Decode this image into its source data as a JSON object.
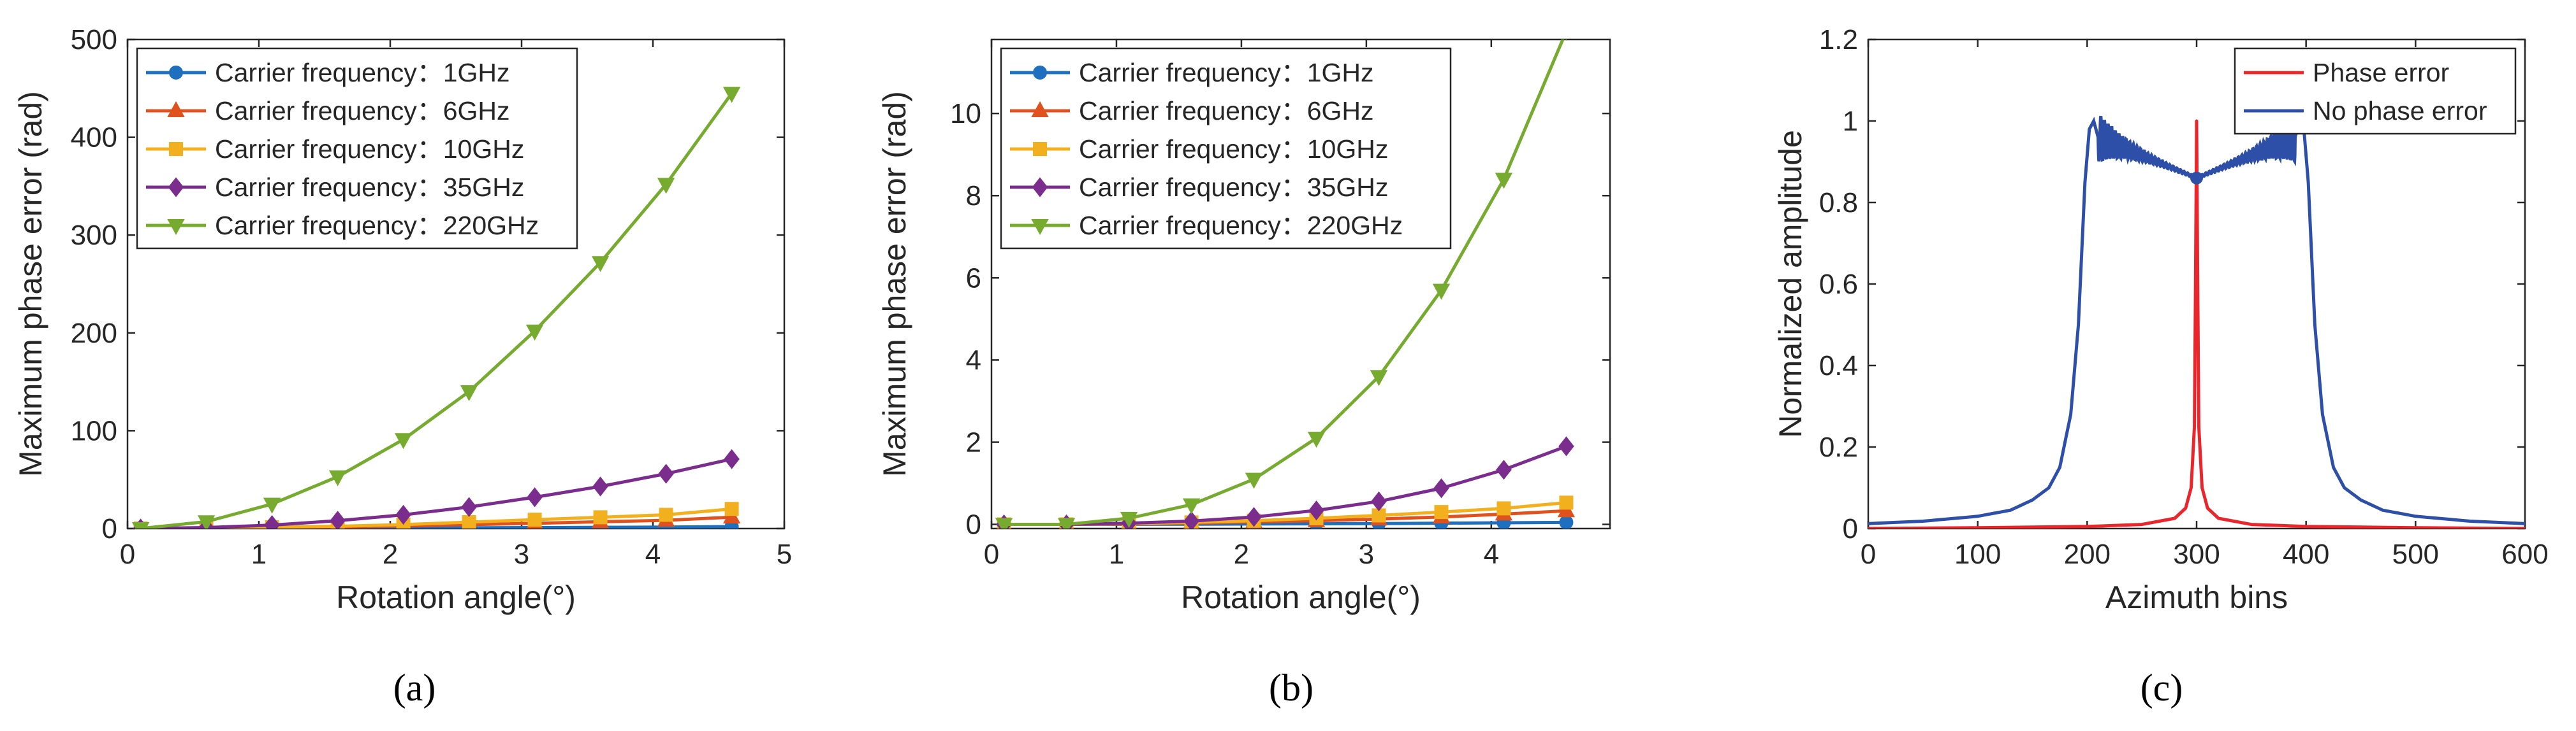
{
  "colors": {
    "blue": "#1f6fbf",
    "orange": "#e0521d",
    "yellow": "#f2b01e",
    "purple": "#7b2d8e",
    "green": "#76ab2f",
    "red": "#e8262b",
    "navy": "#2e4fa8"
  },
  "panels": [
    {
      "caption": "(a)",
      "chart_data": {
        "type": "line",
        "xlabel": "Rotation angle(°)",
        "ylabel": "Maximum phase error (rad)",
        "xlim": [
          0,
          5
        ],
        "ylim": [
          0,
          500
        ],
        "xticks": [
          "0",
          "1",
          "2",
          "3",
          "4",
          "5"
        ],
        "yticks": [
          "0",
          "100",
          "200",
          "300",
          "400",
          "500"
        ],
        "grid": false,
        "legend": "top-left",
        "x": [
          0.1,
          0.6,
          1.1,
          1.6,
          2.1,
          2.6,
          3.1,
          3.6,
          4.1,
          4.6
        ],
        "series": [
          {
            "name": "Carrier frequency：1GHz",
            "color": "blue",
            "marker": "circle",
            "values": [
              0,
              0.04,
              0.14,
              0.25,
              0.45,
              0.72,
              0.98,
              1.2,
              1.5,
              2.0
            ]
          },
          {
            "name": "Carrier frequency：6GHz",
            "color": "orange",
            "marker": "triangle-up",
            "values": [
              0,
              0.2,
              0.8,
              1.4,
              2.5,
              4.0,
              5.3,
              6.9,
              8.4,
              11.6
            ]
          },
          {
            "name": "Carrier frequency：10GHz",
            "color": "yellow",
            "marker": "square",
            "values": [
              0,
              0.4,
              1.3,
              2.3,
              4.0,
              6.5,
              9.0,
              11.5,
              14.0,
              20.0
            ]
          },
          {
            "name": "Carrier frequency：35GHz",
            "color": "purple",
            "marker": "diamond",
            "values": [
              0,
              1.0,
              3.5,
              8.0,
              14.0,
              22.0,
              32.0,
              43.0,
              56.0,
              71.0
            ]
          },
          {
            "name": "Carrier frequency：220GHz",
            "color": "green",
            "marker": "triangle-down",
            "values": [
              0,
              7,
              25,
              53,
              91,
              140,
              202,
              272,
              352,
              445
            ]
          }
        ]
      }
    },
    {
      "caption": "(b)",
      "chart_data": {
        "type": "line",
        "xlabel": "Rotation angle(°)",
        "ylabel": "Maximum phase error (rad)",
        "xlim": [
          0,
          4.95
        ],
        "ylim": [
          -0.1,
          11.8
        ],
        "xticks": [
          "0",
          "1",
          "2",
          "3",
          "4"
        ],
        "yticks": [
          "0",
          "2",
          "4",
          "6",
          "8",
          "10"
        ],
        "grid": false,
        "legend": "top-left",
        "x": [
          0.1,
          0.6,
          1.1,
          1.6,
          2.1,
          2.6,
          3.1,
          3.6,
          4.1,
          4.6
        ],
        "series": [
          {
            "name": "Carrier frequency：1GHz",
            "color": "blue",
            "marker": "circle",
            "values": [
              0,
              0,
              0.002,
              0.005,
              0.01,
              0.015,
              0.02,
              0.03,
              0.04,
              0.05
            ]
          },
          {
            "name": "Carrier frequency：6GHz",
            "color": "orange",
            "marker": "triangle-up",
            "values": [
              0,
              0,
              0.01,
              0.03,
              0.06,
              0.09,
              0.13,
              0.18,
              0.25,
              0.33
            ]
          },
          {
            "name": "Carrier frequency：10GHz",
            "color": "yellow",
            "marker": "square",
            "values": [
              0,
              0,
              0.02,
              0.05,
              0.09,
              0.15,
              0.22,
              0.3,
              0.39,
              0.53
            ]
          },
          {
            "name": "Carrier frequency：35GHz",
            "color": "purple",
            "marker": "diamond",
            "values": [
              0,
              0,
              0.03,
              0.08,
              0.18,
              0.34,
              0.56,
              0.88,
              1.33,
              1.9
            ]
          },
          {
            "name": "Carrier frequency：220GHz",
            "color": "green",
            "marker": "triangle-down",
            "values": [
              0,
              0,
              0.15,
              0.48,
              1.1,
              2.1,
              3.6,
              5.7,
              8.4,
              12.0
            ]
          }
        ]
      }
    },
    {
      "caption": "(c)",
      "chart_data": {
        "type": "line",
        "xlabel": "Azimuth bins",
        "ylabel": "Normalized amplitude",
        "xlim": [
          0,
          600
        ],
        "ylim": [
          0,
          1.2
        ],
        "xticks": [
          "0",
          "100",
          "200",
          "300",
          "400",
          "500",
          "600"
        ],
        "yticks": [
          "0",
          "0.2",
          "0.4",
          "0.6",
          "0.8",
          "1",
          "1.2"
        ],
        "grid": false,
        "legend": "top-right",
        "series": [
          {
            "name": "Phase error",
            "color": "red",
            "x": [
              0,
              100,
              200,
              250,
              280,
              290,
              295,
              298,
              299,
              300,
              301,
              302,
              305,
              310,
              320,
              350,
              400,
              500,
              600
            ],
            "values": [
              0,
              0.002,
              0.005,
              0.01,
              0.025,
              0.05,
              0.1,
              0.25,
              0.6,
              1.0,
              0.6,
              0.25,
              0.1,
              0.05,
              0.025,
              0.01,
              0.005,
              0.002,
              0
            ]
          },
          {
            "name": "No phase error",
            "color": "navy",
            "x": [
              0,
              50,
              100,
              130,
              150,
              165,
              175,
              185,
              192,
              198,
              202,
              206,
              210,
              300,
              390,
              394,
              398,
              402,
              408,
              415,
              425,
              435,
              450,
              470,
              500,
              550,
              600
            ],
            "values": [
              0.012,
              0.018,
              0.03,
              0.045,
              0.07,
              0.1,
              0.15,
              0.28,
              0.5,
              0.85,
              0.98,
              1.0,
              0.96,
              0.86,
              0.96,
              1.0,
              0.98,
              0.85,
              0.5,
              0.28,
              0.15,
              0.1,
              0.07,
              0.045,
              0.03,
              0.018,
              0.012
            ]
          }
        ]
      }
    }
  ]
}
